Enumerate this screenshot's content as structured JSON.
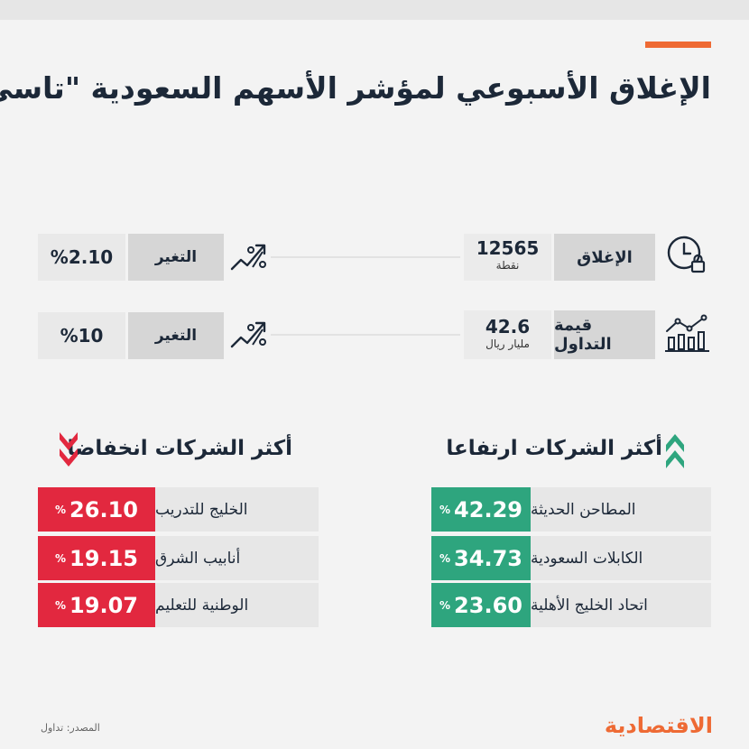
{
  "colors": {
    "accent": "#ee6a34",
    "up": "#2ea57e",
    "down": "#e2283f",
    "text": "#1c2838"
  },
  "title": "الإغلاق الأسبوعي لمؤشر الأسهم السعودية \"تاسي\"",
  "stats": [
    {
      "label": "الإغلاق",
      "value": "12565",
      "unit": "نقطة",
      "change_label": "التغير",
      "change_value": "%2.10",
      "icon": "clock-lock-icon",
      "trend_icon": "trend-percent-icon"
    },
    {
      "label": "قيمة التداول",
      "value": "42.6",
      "unit": "مليار ريال",
      "change_label": "التغير",
      "change_value": "%10",
      "icon": "bar-chart-icon",
      "trend_icon": "trend-percent-icon"
    }
  ],
  "gainers": {
    "title": "أكثر الشركات ارتفاعا",
    "icon": "double-chevron-up-icon",
    "rows": [
      {
        "name": "المطاحن الحديثة",
        "value": "42.29",
        "sign": "%"
      },
      {
        "name": "الكابلات السعودية",
        "value": "34.73",
        "sign": "%"
      },
      {
        "name": "اتحاد الخليج الأهلية",
        "value": "23.60",
        "sign": "%"
      }
    ]
  },
  "losers": {
    "title": "أكثر الشركات انخفاضا",
    "icon": "double-chevron-down-icon",
    "rows": [
      {
        "name": "الخليج للتدريب",
        "value": "26.10",
        "sign": "%"
      },
      {
        "name": "أنابيب الشرق",
        "value": "19.15",
        "sign": "%"
      },
      {
        "name": "الوطنية للتعليم",
        "value": "19.07",
        "sign": "%"
      }
    ]
  },
  "footer": {
    "source": "المصدر: تداول",
    "logo": "الاقتصادية"
  }
}
